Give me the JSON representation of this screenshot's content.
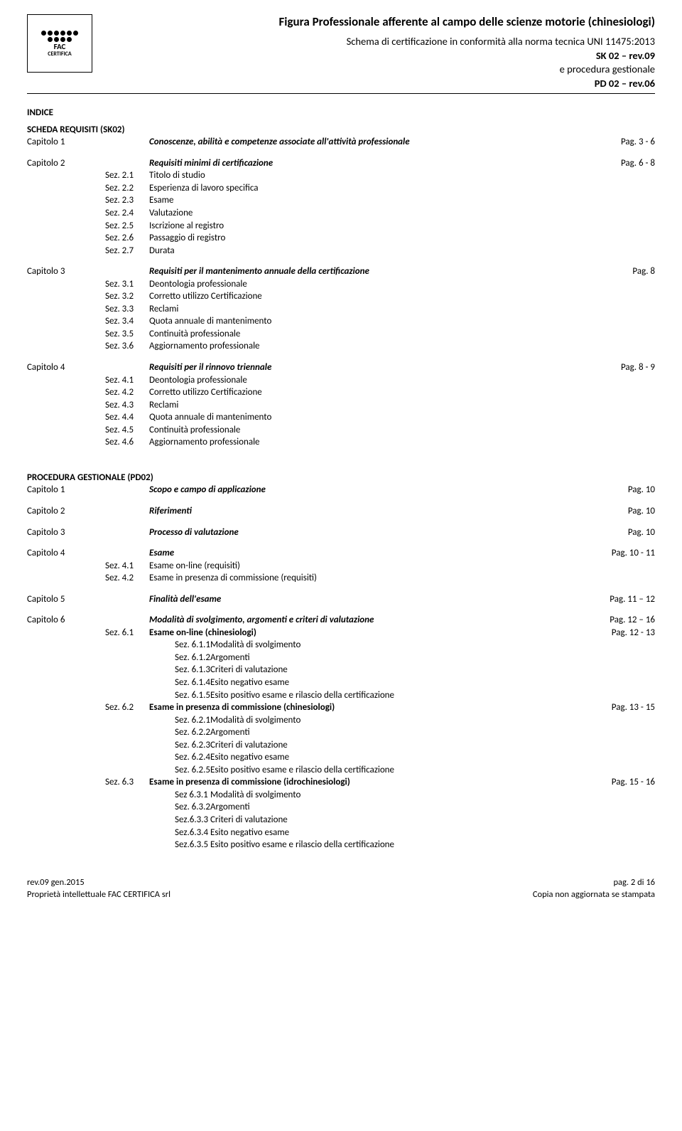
{
  "header": {
    "title": "Figura Professionale afferente al campo delle scienze motorie (chinesiologi)",
    "line1": "Schema di certificazione in conformità alla norma tecnica UNI 11475:2013",
    "line2": "SK 02 – rev.09",
    "line3": "e procedura gestionale",
    "line4": "PD 02 – rev.06",
    "logo_top": "FAC",
    "logo_bottom": "CERTIFICA"
  },
  "indice_label": "INDICE",
  "sk_section": {
    "title": "SCHEDA REQUISITI (SK02)",
    "chapters": [
      {
        "chap": "Capitolo 1",
        "title": "Conoscenze, abilità e competenze associate all'attività professionale",
        "page": "Pag. 3 - 6",
        "italic": true
      },
      {
        "chap": "Capitolo 2",
        "title": "Requisiti minimi di certificazione",
        "page": "Pag. 6 - 8",
        "italic": true,
        "sez": [
          {
            "n": "Sez. 2.1",
            "t": "Titolo di studio"
          },
          {
            "n": "Sez. 2.2",
            "t": "Esperienza di lavoro specifica"
          },
          {
            "n": "Sez. 2.3",
            "t": "Esame"
          },
          {
            "n": "Sez. 2.4",
            "t": "Valutazione"
          },
          {
            "n": "Sez. 2.5",
            "t": "Iscrizione al registro"
          },
          {
            "n": "Sez. 2.6",
            "t": "Passaggio di registro"
          },
          {
            "n": "Sez. 2.7",
            "t": "Durata"
          }
        ]
      },
      {
        "chap": "Capitolo 3",
        "title": "Requisiti per il mantenimento annuale della certificazione",
        "page": "Pag. 8",
        "italic": true,
        "sez": [
          {
            "n": "Sez. 3.1",
            "t": "Deontologia professionale"
          },
          {
            "n": "Sez. 3.2",
            "t": "Corretto utilizzo Certificazione"
          },
          {
            "n": "Sez. 3.3",
            "t": "Reclami"
          },
          {
            "n": "Sez. 3.4",
            "t": "Quota annuale di mantenimento"
          },
          {
            "n": "Sez. 3.5",
            "t": "Continuità professionale"
          },
          {
            "n": "Sez. 3.6",
            "t": "Aggiornamento professionale"
          }
        ]
      },
      {
        "chap": "Capitolo 4",
        "title": "Requisiti per il rinnovo triennale",
        "page": "Pag. 8 - 9",
        "italic": true,
        "sez": [
          {
            "n": "Sez. 4.1",
            "t": "Deontologia professionale"
          },
          {
            "n": "Sez. 4.2",
            "t": "Corretto utilizzo Certificazione"
          },
          {
            "n": "Sez. 4.3",
            "t": "Reclami"
          },
          {
            "n": "Sez. 4.4",
            "t": "Quota annuale di mantenimento"
          },
          {
            "n": "Sez. 4.5",
            "t": "Continuità professionale"
          },
          {
            "n": "Sez. 4.6",
            "t": "Aggiornamento professionale"
          }
        ]
      }
    ]
  },
  "pd_section": {
    "title": "PROCEDURA GESTIONALE (PD02)",
    "chapters": [
      {
        "chap": "Capitolo 1",
        "title": "Scopo e campo di applicazione",
        "page": "Pag. 10",
        "italic": true
      },
      {
        "chap": "Capitolo 2",
        "title": "Riferimenti",
        "page": "Pag. 10",
        "italic": true
      },
      {
        "chap": "Capitolo 3",
        "title": "Processo di valutazione",
        "page": "Pag. 10",
        "italic": true
      },
      {
        "chap": "Capitolo 4",
        "title": "Esame",
        "page": "Pag. 10 - 11",
        "italic": true,
        "sez": [
          {
            "n": "Sez. 4.1",
            "t": "Esame on-line (requisiti)"
          },
          {
            "n": "Sez. 4.2",
            "t": "Esame in presenza di commissione (requisiti)"
          }
        ]
      },
      {
        "chap": "Capitolo 5",
        "title": "Finalità dell'esame",
        "page": "Pag. 11 – 12",
        "italic": true
      },
      {
        "chap": "Capitolo  6",
        "title": "Modalità di svolgimento, argomenti e  criteri di valutazione",
        "page": "Pag. 12 – 16",
        "italic": true,
        "sez": [
          {
            "n": "Sez. 6.1",
            "t": "Esame on-line (chinesiologi)",
            "page": "Pag. 12 - 13",
            "bold": true,
            "sub": [
              {
                "n": "Sez. 6.1.1",
                "t": "Modalità di svolgimento"
              },
              {
                "n": "Sez. 6.1.2",
                "t": "Argomenti"
              },
              {
                "n": "Sez. 6.1.3",
                "t": "Criteri di valutazione"
              },
              {
                "n": "Sez. 6.1.4",
                "t": "Esito negativo esame"
              },
              {
                "n": "Sez. 6.1.5",
                "t": "Esito positivo esame e rilascio della certificazione"
              }
            ]
          },
          {
            "n": "Sez. 6.2",
            "t": "Esame in presenza di commissione (chinesiologi)",
            "page": "Pag. 13 - 15",
            "bold": true,
            "sub": [
              {
                "n": "Sez. 6.2.1",
                "t": "Modalità di svolgimento"
              },
              {
                "n": "Sez. 6.2.2",
                "t": "Argomenti"
              },
              {
                "n": "Sez. 6.2.3",
                "t": "Criteri di valutazione"
              },
              {
                "n": "Sez. 6.2.4",
                "t": "Esito negativo esame"
              },
              {
                "n": "Sez. 6.2.5",
                "t": "Esito positivo esame e rilascio della certificazione"
              }
            ]
          },
          {
            "n": "Sez. 6.3",
            "t": "Esame in presenza di commissione (idrochinesiologi)",
            "page": "Pag. 15 - 16",
            "bold": true,
            "sub": [
              {
                "n": " Sez 6.3.1",
                "t": "Modalità di svolgimento"
              },
              {
                "n": "Sez. 6.3.2",
                "t": "Argomenti"
              },
              {
                "n": " Sez.6.3.3",
                "t": "Criteri di valutazione"
              },
              {
                "n": " Sez.6.3.4",
                "t": "Esito negativo esame"
              },
              {
                "n": " Sez.6.3.5",
                "t": "Esito positivo esame e rilascio della certificazione"
              }
            ]
          }
        ]
      }
    ]
  },
  "footer": {
    "left1": "rev.09 gen.2015",
    "left2": "Proprietà intellettuale FAC CERTIFICA srl",
    "right1": "pag. 2 di  16",
    "right2": "Copia non aggiornata se stampata"
  }
}
